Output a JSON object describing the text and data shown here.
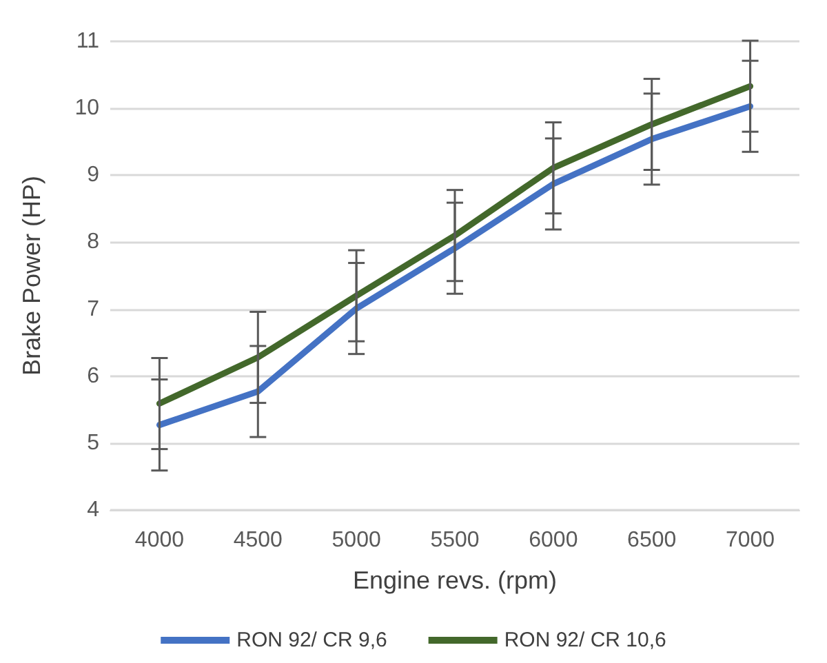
{
  "chart_data": {
    "type": "line",
    "xlabel": "Engine revs. (rpm)",
    "ylabel": "Brake Power (HP)",
    "categories": [
      "4000",
      "4500",
      "5000",
      "5500",
      "6000",
      "6500",
      "7000"
    ],
    "series": [
      {
        "name": "RON 92/ CR 9,6",
        "color": "#4472c4",
        "values": [
          5.27,
          5.77,
          7.01,
          7.91,
          8.87,
          9.54,
          10.03
        ],
        "errors": [
          0.68,
          0.68,
          0.68,
          0.68,
          0.68,
          0.68,
          0.68
        ]
      },
      {
        "name": "RON 92/ CR 10,6",
        "color": "#43682b",
        "values": [
          5.59,
          6.28,
          7.2,
          8.1,
          9.11,
          9.76,
          10.33
        ],
        "errors": [
          0.68,
          0.68,
          0.68,
          0.68,
          0.68,
          0.68,
          0.68
        ]
      }
    ],
    "ylim": [
      4,
      11
    ],
    "yticks": [
      4,
      5,
      6,
      7,
      8,
      9,
      10,
      11
    ],
    "grid": "y",
    "legend": "bottom",
    "marker": "none",
    "line_style": "solid"
  }
}
